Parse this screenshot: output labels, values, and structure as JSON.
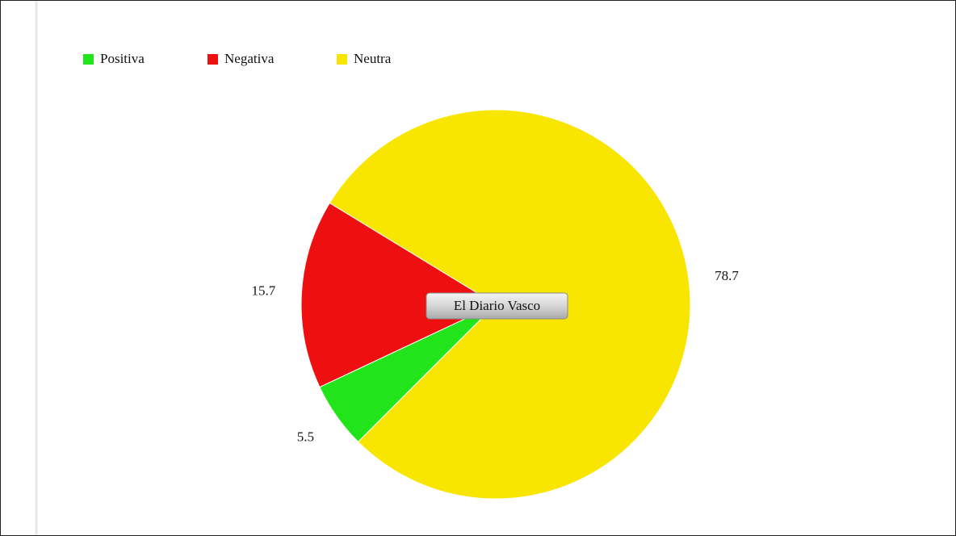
{
  "chart_data": {
    "type": "pie",
    "title": "El Diario Vasco",
    "categories": [
      "Positiva",
      "Negativa",
      "Neutra"
    ],
    "values": [
      5.5,
      15.7,
      78.7
    ],
    "colors": [
      "#22e41b",
      "#ee1010",
      "#f8e500"
    ],
    "legend": "top-left"
  }
}
